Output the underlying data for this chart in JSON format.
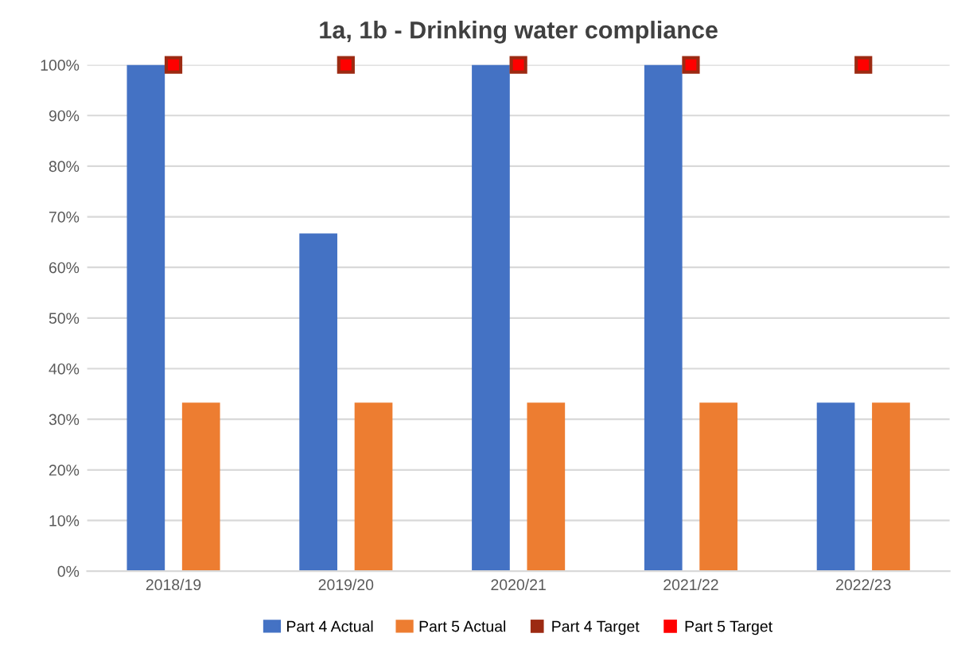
{
  "chart_data": {
    "type": "bar",
    "title": "1a, 1b - Drinking water compliance",
    "categories": [
      "2018/19",
      "2019/20",
      "2020/21",
      "2021/22",
      "2022/23"
    ],
    "series": [
      {
        "name": "Part 4 Actual",
        "color": "#4472c4",
        "values": [
          100,
          66.7,
          100,
          100,
          33.3
        ]
      },
      {
        "name": "Part 5 Actual",
        "color": "#ed7d31",
        "values": [
          33.3,
          33.3,
          33.3,
          33.3,
          33.3
        ]
      },
      {
        "name": "Part 4 Target",
        "type": "scatter",
        "marker": "square",
        "color": "#9c2a12",
        "values": [
          100,
          100,
          100,
          100,
          100
        ]
      },
      {
        "name": "Part 5 Target",
        "type": "scatter",
        "marker": "square",
        "color": "#ff0000",
        "values": [
          100,
          100,
          100,
          100,
          100
        ]
      }
    ],
    "ylim": [
      0,
      100
    ],
    "yticks": [
      {
        "value": 0,
        "label": "0%"
      },
      {
        "value": 10,
        "label": "10%"
      },
      {
        "value": 20,
        "label": "20%"
      },
      {
        "value": 30,
        "label": "30%"
      },
      {
        "value": 40,
        "label": "40%"
      },
      {
        "value": 50,
        "label": "50%"
      },
      {
        "value": 60,
        "label": "60%"
      },
      {
        "value": 70,
        "label": "70%"
      },
      {
        "value": 80,
        "label": "80%"
      },
      {
        "value": 90,
        "label": "90%"
      },
      {
        "value": 100,
        "label": "100%"
      }
    ],
    "grid": "y",
    "legend": "bottom"
  }
}
